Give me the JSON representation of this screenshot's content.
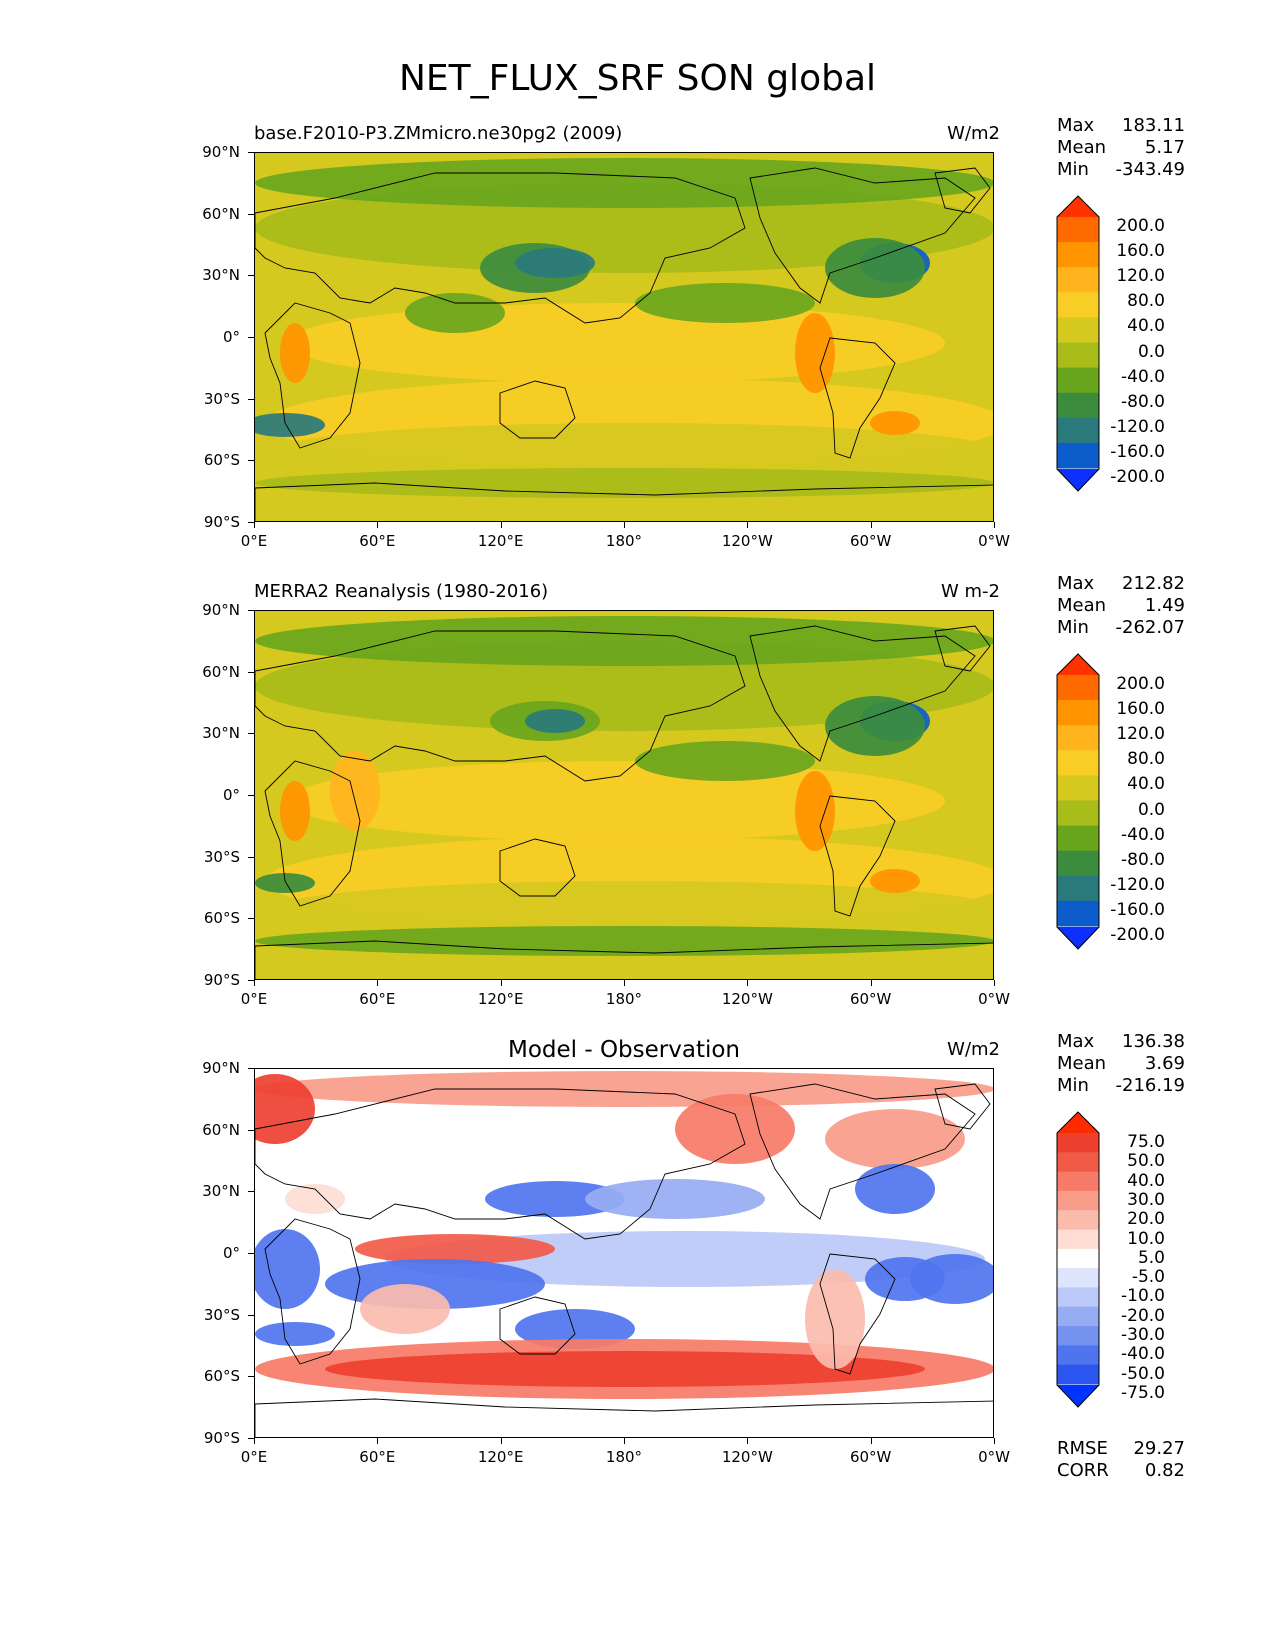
{
  "chart_data": {
    "type": "heatmap",
    "title": "NET_FLUX_SRF SON global",
    "panels": [
      {
        "name": "model",
        "title": "base.F2010-P3.ZMmicro.ne30pg2 (2009)",
        "units": "W/m2",
        "stats": {
          "max_label": "Max",
          "max": "183.11",
          "mean_label": "Mean",
          "mean": "5.17",
          "min_label": "Min",
          "min": "-343.49"
        },
        "colorbar": {
          "levels": [
            "200.0",
            "160.0",
            "120.0",
            "80.0",
            "40.0",
            "0.0",
            "-40.0",
            "-80.0",
            "-120.0",
            "-160.0",
            "-200.0"
          ],
          "colors": [
            "#ff3300",
            "#ff6a00",
            "#ff9400",
            "#ffb41e",
            "#f8cd26",
            "#d5c81e",
            "#a8bc1a",
            "#6aa61d",
            "#3c8c3d",
            "#2a7a7c",
            "#0c5ccc",
            "#0d30ff"
          ]
        }
      },
      {
        "name": "obs",
        "title": "MERRA2 Reanalysis (1980-2016)",
        "units": "W m-2",
        "stats": {
          "max_label": "Max",
          "max": "212.82",
          "mean_label": "Mean",
          "mean": "1.49",
          "min_label": "Min",
          "min": "-262.07"
        },
        "colorbar": {
          "levels": [
            "200.0",
            "160.0",
            "120.0",
            "80.0",
            "40.0",
            "0.0",
            "-40.0",
            "-80.0",
            "-120.0",
            "-160.0",
            "-200.0"
          ],
          "colors": [
            "#ff3300",
            "#ff6a00",
            "#ff9400",
            "#ffb41e",
            "#f8cd26",
            "#d5c81e",
            "#a8bc1a",
            "#6aa61d",
            "#3c8c3d",
            "#2a7a7c",
            "#0c5ccc",
            "#0d30ff"
          ]
        }
      },
      {
        "name": "diff",
        "title": "Model - Observation",
        "units": "W/m2",
        "stats": {
          "max_label": "Max",
          "max": "136.38",
          "mean_label": "Mean",
          "mean": "3.69",
          "min_label": "Min",
          "min": "-216.19"
        },
        "colorbar": {
          "levels": [
            "75.0",
            "50.0",
            "40.0",
            "30.0",
            "20.0",
            "10.0",
            "5.0",
            "-5.0",
            "-10.0",
            "-20.0",
            "-30.0",
            "-40.0",
            "-50.0",
            "-75.0"
          ],
          "colors": [
            "#ff2a00",
            "#ee4030",
            "#f25a48",
            "#f77b68",
            "#f99c8a",
            "#fbbcae",
            "#fdddd4",
            "#ffffff",
            "#dde4fb",
            "#bac9f7",
            "#97adf3",
            "#7592ef",
            "#4f74ee",
            "#2a55ee",
            "#0033ff"
          ]
        }
      }
    ],
    "xticks": [
      "0°E",
      "60°E",
      "120°E",
      "180°",
      "120°W",
      "60°W",
      "0°W"
    ],
    "yticks": [
      "90°N",
      "60°N",
      "30°N",
      "0°",
      "30°S",
      "60°S",
      "90°S"
    ],
    "extra_stats": {
      "rmse_label": "RMSE",
      "rmse": "29.27",
      "corr_label": "CORR",
      "corr": "0.82"
    }
  }
}
